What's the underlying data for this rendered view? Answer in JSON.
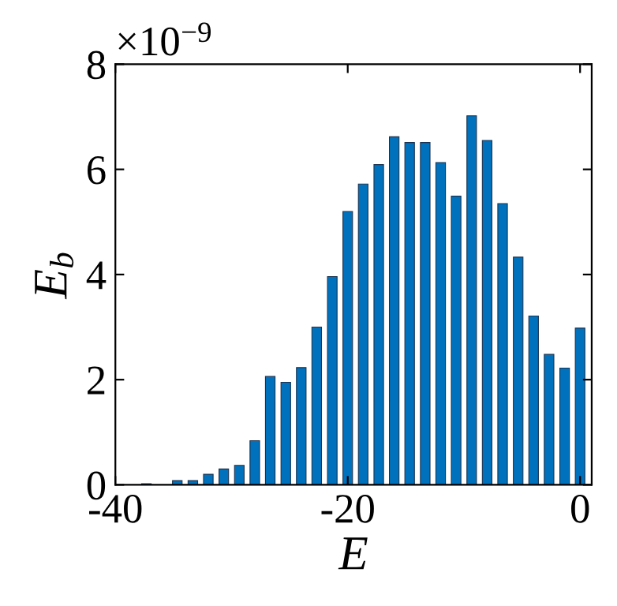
{
  "chart_data": {
    "type": "bar",
    "xlabel": "E",
    "ylabel": "E$_{b}$",
    "color": "#0072bd",
    "x": [
      -37.33,
      -34.67,
      -33.33,
      -32,
      -30.67,
      -29.33,
      -28,
      -26.67,
      -25.33,
      -24,
      -22.67,
      -21.33,
      -20,
      -18.67,
      -17.33,
      -16,
      -14.67,
      -13.33,
      -12,
      -10.67,
      -9.33,
      -8,
      -6.67,
      -5.33,
      -4,
      -2.67,
      -1.33,
      0
    ],
    "values": [
      0.02,
      0.08,
      0.08,
      0.2,
      0.3,
      0.37,
      0.84,
      2.06,
      1.95,
      2.23,
      3.0,
      3.96,
      5.2,
      5.72,
      6.09,
      6.62,
      6.51,
      6.51,
      6.13,
      5.49,
      7.02,
      6.55,
      5.35,
      4.33,
      3.21,
      2.48,
      2.22,
      2.98
    ],
    "xlim": [
      -40,
      1
    ],
    "xticks": [
      -40,
      -20,
      0
    ],
    "ylim": [
      0,
      8
    ],
    "yticks": [
      0,
      2,
      4,
      6,
      8
    ],
    "annotations": [
      "×10$^{−9}$"
    ],
    "grid": false
  }
}
